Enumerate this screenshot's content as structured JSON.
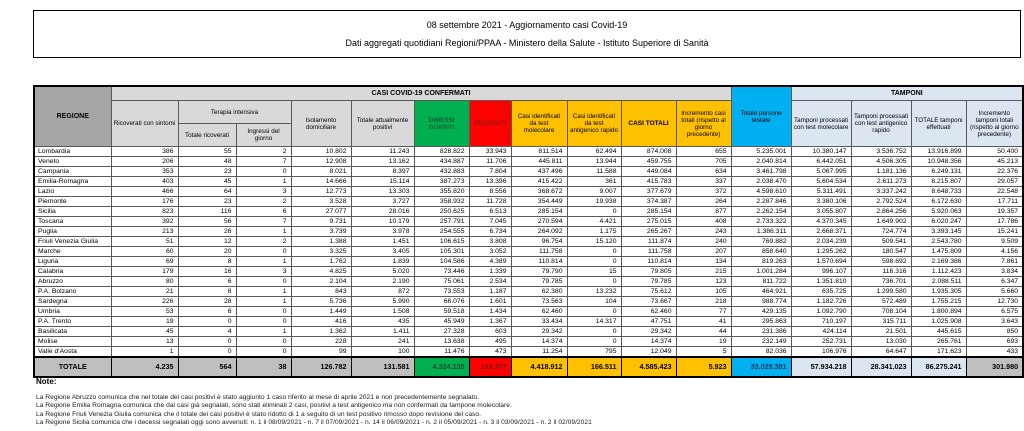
{
  "title": {
    "line1": "08 settembre 2021 - Aggiornamento casi Covid-19",
    "line2": "Dati aggregati quotidiani Regioni/PPAA - Ministero della Salute - Istituto Superiore di Sanità"
  },
  "colors": {
    "header_gray": "#a6a6a6",
    "header_light": "#d9d9d9",
    "green": "#00b050",
    "red": "#ff0000",
    "orange": "#ffc000",
    "cyan": "#00b0f0",
    "tamponi_blue": "#dce6f1",
    "total_gray": "#bfbfbf"
  },
  "table": {
    "headers": {
      "regione": "REGIONE",
      "casi_confermati_group": "CASI COVID-19 CONFERMATI",
      "tamponi_group": "TAMPONI",
      "terapia_intensiva_group": "Terapia intensiva",
      "ricoverati": "Ricoverati con sintomi",
      "ti_totale": "Totale ricoverati",
      "ti_ingressi": "Ingressi del giorno",
      "isolamento": "Isolamento domiciliare",
      "attualmente_positivi": "Totale attualmente positivi",
      "dimessi_guariti": "DIMESSI GUARITI",
      "deceduti": "DECEDUTI",
      "casi_molecolare": "Casi identificati da test molecolare",
      "casi_antigenico": "Casi identificati da test antigenico rapido",
      "casi_totali": "CASI TOTALI",
      "incremento_casi": "Incremento casi totali (rispetto al giorno precedente)",
      "persone_testate": "Totale persone testate",
      "tamponi_molecolare": "Tamponi processati con test molecolare",
      "tamponi_antigenico": "Tamponi processati con test antigenico rapido",
      "tamponi_totale": "TOTALE tamponi effettuati",
      "incremento_tamponi": "Incremento tamponi totali (rispetto al giorno precedente)"
    },
    "rows": [
      {
        "region": "Lombardia",
        "values": [
          "386",
          "55",
          "2",
          "10.802",
          "11.243",
          "828.822",
          "33.943",
          "811.514",
          "62.494",
          "874.008",
          "655",
          "5.235.001",
          "10.380.147",
          "3.536.752",
          "13.916.899",
          "50.400"
        ]
      },
      {
        "region": "Veneto",
        "values": [
          "206",
          "48",
          "7",
          "12.908",
          "13.162",
          "434.887",
          "11.706",
          "445.811",
          "13.944",
          "459.755",
          "705",
          "2.040.814",
          "6.442.051",
          "4.506.305",
          "10.948.356",
          "45.213"
        ]
      },
      {
        "region": "Campania",
        "values": [
          "353",
          "23",
          "0",
          "8.021",
          "8.397",
          "432.883",
          "7.804",
          "437.496",
          "11.588",
          "449.084",
          "634",
          "3.461.798",
          "5.067.995",
          "1.181.136",
          "6.249.131",
          "22.376"
        ]
      },
      {
        "region": "Emilia-Romagna",
        "values": [
          "403",
          "45",
          "1",
          "14.666",
          "15.114",
          "387.273",
          "13.396",
          "415.422",
          "361",
          "415.783",
          "337",
          "2.038.470",
          "5.604.534",
          "2.611.273",
          "8.215.807",
          "29.057"
        ]
      },
      {
        "region": "Lazio",
        "values": [
          "466",
          "64",
          "3",
          "12.773",
          "13.303",
          "355.820",
          "8.556",
          "368.672",
          "9.007",
          "377.679",
          "372",
          "4.598.610",
          "5.311.491",
          "3.337.242",
          "8.648.733",
          "22.548"
        ]
      },
      {
        "region": "Piemonte",
        "values": [
          "176",
          "23",
          "2",
          "3.528",
          "3.727",
          "358.932",
          "11.728",
          "354.449",
          "19.938",
          "374.387",
          "264",
          "2.287.846",
          "3.380.106",
          "2.792.524",
          "6.172.630",
          "17.711"
        ]
      },
      {
        "region": "Sicilia",
        "values": [
          "823",
          "116",
          "6",
          "27.077",
          "28.016",
          "250.625",
          "6.513",
          "285.154",
          "0",
          "285.154",
          "877",
          "2.262.154",
          "3.055.807",
          "2.864.256",
          "5.920.063",
          "19.357"
        ]
      },
      {
        "region": "Toscana",
        "values": [
          "392",
          "56",
          "7",
          "9.731",
          "10.179",
          "257.791",
          "7.045",
          "270.594",
          "4.421",
          "275.015",
          "408",
          "2.733.322",
          "4.370.345",
          "1.649.902",
          "6.020.247",
          "17.786"
        ]
      },
      {
        "region": "Puglia",
        "values": [
          "213",
          "26",
          "1",
          "3.739",
          "3.978",
          "254.555",
          "6.734",
          "264.092",
          "1.175",
          "265.267",
          "243",
          "1.386.311",
          "2.668.371",
          "724.774",
          "3.393.145",
          "15.241"
        ]
      },
      {
        "region": "Friuli Venezia Giulia",
        "values": [
          "51",
          "12",
          "2",
          "1.388",
          "1.451",
          "106.615",
          "3.808",
          "96.754",
          "15.120",
          "111.874",
          "240",
          "769.882",
          "2.034.239",
          "509.541",
          "2.543.780",
          "9.509"
        ]
      },
      {
        "region": "Marche",
        "values": [
          "60",
          "20",
          "0",
          "3.325",
          "3.405",
          "105.301",
          "3.052",
          "111.758",
          "0",
          "111.758",
          "207",
          "858.640",
          "1.295.262",
          "180.547",
          "1.475.809",
          "4.156"
        ]
      },
      {
        "region": "Liguria",
        "values": [
          "69",
          "8",
          "1",
          "1.762",
          "1.839",
          "104.586",
          "4.389",
          "110.814",
          "0",
          "110.814",
          "134",
          "819.263",
          "1.570.694",
          "598.692",
          "2.169.386",
          "7.861"
        ]
      },
      {
        "region": "Calabria",
        "values": [
          "179",
          "16",
          "3",
          "4.825",
          "5.020",
          "73.446",
          "1.339",
          "79.790",
          "15",
          "79.805",
          "215",
          "1.001.284",
          "996.107",
          "116.316",
          "1.112.423",
          "3.834"
        ]
      },
      {
        "region": "Abruzzo",
        "values": [
          "80",
          "6",
          "0",
          "2.104",
          "2.190",
          "75.061",
          "2.534",
          "79.785",
          "0",
          "79.785",
          "123",
          "811.722",
          "1.351.810",
          "736.701",
          "2.088.511",
          "6.347"
        ]
      },
      {
        "region": "P.A. Bolzano",
        "values": [
          "21",
          "8",
          "1",
          "843",
          "872",
          "73.553",
          "1.187",
          "62.380",
          "13.232",
          "75.612",
          "105",
          "464.921",
          "635.725",
          "1.299.580",
          "1.935.305",
          "5.660"
        ]
      },
      {
        "region": "Sardegna",
        "values": [
          "226",
          "28",
          "1",
          "5.736",
          "5.990",
          "66.076",
          "1.601",
          "73.563",
          "104",
          "73.667",
          "218",
          "988.774",
          "1.182.726",
          "572.489",
          "1.755.215",
          "12.730"
        ]
      },
      {
        "region": "Umbria",
        "values": [
          "53",
          "6",
          "0",
          "1.449",
          "1.508",
          "59.518",
          "1.434",
          "62.460",
          "0",
          "62.460",
          "77",
          "429.135",
          "1.092.790",
          "708.104",
          "1.800.894",
          "6.575"
        ]
      },
      {
        "region": "P.A. Trento",
        "values": [
          "19",
          "0",
          "0",
          "416",
          "435",
          "45.949",
          "1.367",
          "33.434",
          "14.317",
          "47.751",
          "41",
          "295.863",
          "710.197",
          "315.711",
          "1.025.908",
          "3.643"
        ]
      },
      {
        "region": "Basilicata",
        "values": [
          "45",
          "4",
          "1",
          "1.362",
          "1.411",
          "27.328",
          "603",
          "29.342",
          "0",
          "29.342",
          "44",
          "231.386",
          "424.114",
          "21.501",
          "445.615",
          "850"
        ]
      },
      {
        "region": "Molise",
        "values": [
          "13",
          "0",
          "0",
          "228",
          "241",
          "13.638",
          "495",
          "14.374",
          "0",
          "14.374",
          "19",
          "232.149",
          "252.731",
          "13.030",
          "265.761",
          "693"
        ]
      },
      {
        "region": "Valle d'Aosta",
        "values": [
          "1",
          "0",
          "0",
          "99",
          "100",
          "11.476",
          "473",
          "11.254",
          "795",
          "12.049",
          "5",
          "82.036",
          "106.976",
          "64.647",
          "171.623",
          "433"
        ]
      }
    ],
    "total_row": {
      "region": "TOTALE",
      "values": [
        "4.235",
        "564",
        "38",
        "126.782",
        "131.581",
        "4.324.135",
        "129.707",
        "4.418.912",
        "166.511",
        "4.585.423",
        "5.923",
        "33.029.381",
        "57.934.218",
        "28.341.023",
        "86.275.241",
        "301.980"
      ]
    }
  },
  "notes": {
    "label": "Note:",
    "lines": [
      "La Regione Abruzzo comunica che nel totale dei casi positivi è stato aggiunto 1 caso riferito al mese di aprile 2021 e non precedentemente segnalato.",
      "La Regione Emilia Romagna comunica che dai casi già segnalati, sono stati eliminati 2 casi, positivi a test antigenico ma non confermati da tampone molecolare.",
      "La Regione Friuli Venezia Giulia comunica che il totale dei casi positivi è stato ridotto di 1 a seguito di un test positivo rimosso dopo revisione del caso.",
      "La Regione Sicilia comunica che i decessi segnalati oggi sono avvenuti: n. 1 il 08/09/2021 - n. 7 il 07/09/2021 - n. 14 il 06/09/2021 - n. 2 il 05/09/2021 - n. 3 il 03/09/2021 - n. 2 il 02/09/2021"
    ]
  }
}
